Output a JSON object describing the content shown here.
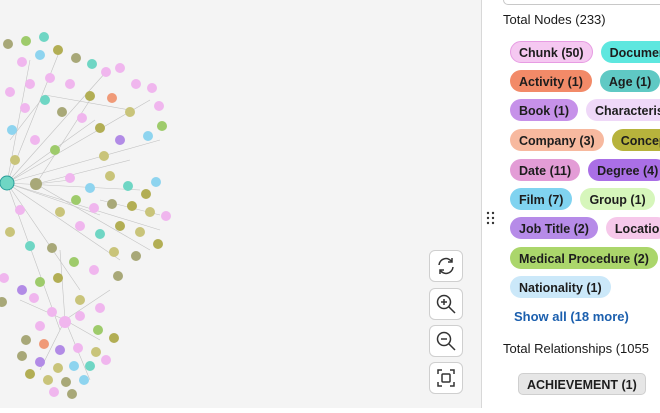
{
  "panel": {
    "total_nodes": "Total Nodes (233)",
    "node_labels": [
      "Chunk (50)",
      "Documen",
      "Activity (1)",
      "Age (1)",
      "Book (1)",
      "Characteris",
      "Company (3)",
      "Concep",
      "Date (11)",
      "Degree (4)",
      "Film (7)",
      "Group (1)",
      "Job Title (2)",
      "Locatio",
      "Medical Procedure (2)",
      "Nationality (1)"
    ],
    "show_all": "Show all (18 more)",
    "total_relationships": "Total Relationships (1055",
    "relationship_types": [
      "ACHIEVEMENT (1)"
    ]
  }
}
